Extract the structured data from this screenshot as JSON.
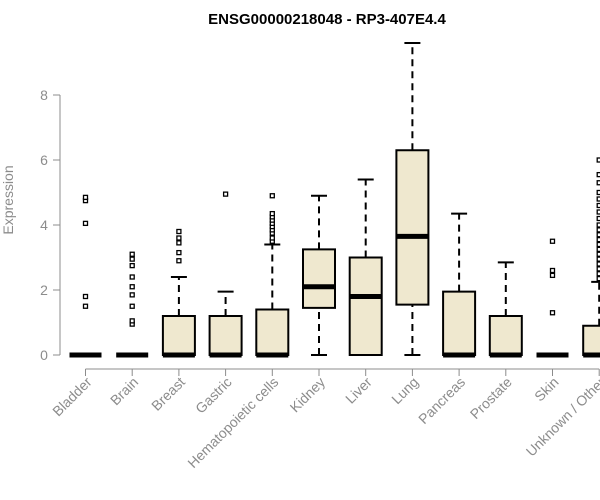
{
  "chart_data": {
    "type": "boxplot",
    "title": "ENSG00000218048 - RP3-407E4.4",
    "xlabel": "",
    "ylabel": "Expression",
    "ylim": [
      0,
      9.6
    ],
    "yticks": [
      0,
      2,
      4,
      6,
      8
    ],
    "box_fill": "#efe8cf",
    "categories": [
      "Bladder",
      "Brain",
      "Breast",
      "Gastric",
      "Hematopoietic cells",
      "Kidney",
      "Liver",
      "Lung",
      "Pancreas",
      "Prostate",
      "Skin",
      "Unknown / Other"
    ],
    "boxes": [
      {
        "min": 0,
        "q1": 0,
        "median": 0,
        "q3": 0,
        "max": 0,
        "outliers": [
          1.5,
          1.8,
          4.05,
          4.75,
          4.85
        ]
      },
      {
        "min": 0,
        "q1": 0,
        "median": 0,
        "q3": 0,
        "max": 0,
        "outliers": [
          0.95,
          1.05,
          1.5,
          1.85,
          2.1,
          2.4,
          2.75,
          2.95,
          3.1
        ]
      },
      {
        "min": 0,
        "q1": 0,
        "median": 0,
        "q3": 1.2,
        "max": 2.4,
        "outliers": [
          2.9,
          3.15,
          3.45,
          3.6,
          3.8
        ]
      },
      {
        "min": 0,
        "q1": 0,
        "median": 0,
        "q3": 1.2,
        "max": 1.95,
        "outliers": [
          4.95
        ]
      },
      {
        "min": 0,
        "q1": 0,
        "median": 0,
        "q3": 1.4,
        "max": 3.4,
        "outliers": [
          3.5,
          3.6,
          3.75,
          3.85,
          3.95,
          4.05,
          4.15,
          4.25,
          4.35,
          4.9
        ]
      },
      {
        "min": 0,
        "q1": 1.45,
        "median": 2.1,
        "q3": 3.25,
        "max": 4.9,
        "outliers": []
      },
      {
        "min": 0,
        "q1": 0,
        "median": 1.8,
        "q3": 3.0,
        "max": 5.4,
        "outliers": []
      },
      {
        "min": 0,
        "q1": 1.55,
        "median": 3.65,
        "q3": 6.3,
        "max": 9.6,
        "outliers": []
      },
      {
        "min": 0,
        "q1": 0,
        "median": 0,
        "q3": 1.95,
        "max": 4.35,
        "outliers": []
      },
      {
        "min": 0,
        "q1": 0,
        "median": 0,
        "q3": 1.2,
        "max": 2.85,
        "outliers": []
      },
      {
        "min": 0,
        "q1": 0,
        "median": 0,
        "q3": 0,
        "max": 0,
        "outliers": [
          1.3,
          2.45,
          2.6,
          3.5
        ]
      },
      {
        "min": 0,
        "q1": 0,
        "median": 0,
        "q3": 0.9,
        "max": 2.25,
        "outliers": [
          2.35,
          2.5,
          2.65,
          2.8,
          2.95,
          3.1,
          3.25,
          3.4,
          3.55,
          3.7,
          3.85,
          4.0,
          4.2,
          4.4,
          4.6,
          4.8,
          5.0,
          5.3,
          5.55,
          6.0
        ]
      }
    ]
  }
}
